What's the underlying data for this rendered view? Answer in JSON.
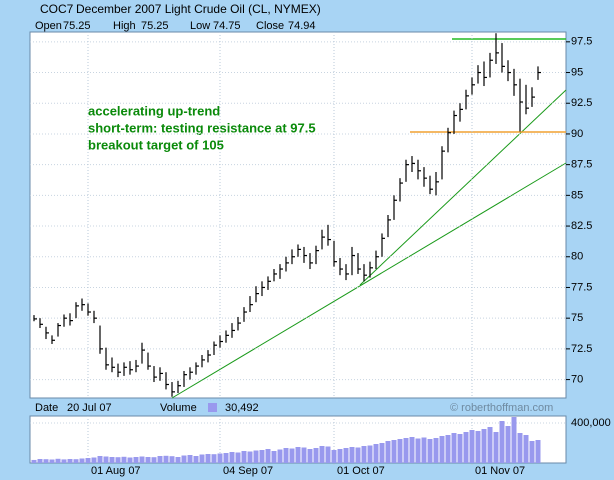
{
  "chart_data": [
    {
      "type": "ohlc",
      "symbol": "COC7",
      "title": "December 2007 Light Crude Oil (CL, NYMEX)",
      "info": [
        {
          "label": "Open",
          "value": 75.25
        },
        {
          "label": "High",
          "value": 75.25
        },
        {
          "label": "Low",
          "value": 74.75
        },
        {
          "label": "Close",
          "value": 74.94
        }
      ],
      "annotations": [
        "accelerating up-trend",
        "short-term: testing resistance at 97.5",
        "breakout target of 105"
      ],
      "watermark": "© roberthoffman.com",
      "color": "#000000",
      "ylim": [
        68.5,
        98.3
      ],
      "yticks": [
        70,
        72.5,
        75,
        77.5,
        80,
        82.5,
        85,
        87.5,
        90,
        92.5,
        95,
        97.5
      ],
      "grid": true,
      "high": [
        75.25,
        75.0,
        74.3,
        73.6,
        74.6,
        75.3,
        75.4,
        76.3,
        76.6,
        76.2,
        75.6,
        74.4,
        72.6,
        71.8,
        71.3,
        71.4,
        71.5,
        71.6,
        73.0,
        72.2,
        71.1,
        71.0,
        70.6,
        69.8,
        69.9,
        70.7,
        71.0,
        71.4,
        72.0,
        72.4,
        73.1,
        73.6,
        74.0,
        74.6,
        75.1,
        75.9,
        76.8,
        77.6,
        78.0,
        78.4,
        79.0,
        79.4,
        80.0,
        80.6,
        81.0,
        80.8,
        80.3,
        80.9,
        82.2,
        82.6,
        81.3,
        79.9,
        79.4,
        80.8,
        80.3,
        79.4,
        79.6,
        80.5,
        81.9,
        83.4,
        85.0,
        86.4,
        87.9,
        88.2,
        87.9,
        87.3,
        86.6,
        86.9,
        89.0,
        90.5,
        91.9,
        92.5,
        93.6,
        94.6,
        95.6,
        95.9,
        96.6,
        98.2,
        97.4,
        96.0,
        95.3,
        94.5,
        94.0,
        93.8,
        95.5
      ],
      "low": [
        74.75,
        74.2,
        73.3,
        72.9,
        73.5,
        74.3,
        74.4,
        75.0,
        75.6,
        75.2,
        74.6,
        72.1,
        70.8,
        70.6,
        70.2,
        70.3,
        70.4,
        70.6,
        71.3,
        70.8,
        69.8,
        69.9,
        69.2,
        68.6,
        68.9,
        69.4,
        70.0,
        70.4,
        71.0,
        71.4,
        72.0,
        72.6,
        73.0,
        73.4,
        74.0,
        74.7,
        75.5,
        76.3,
        76.8,
        77.3,
        78.0,
        78.2,
        78.8,
        79.4,
        80.0,
        79.5,
        79.0,
        79.4,
        80.6,
        80.9,
        79.2,
        78.5,
        78.1,
        78.5,
        78.6,
        78.0,
        78.3,
        79.0,
        80.0,
        81.6,
        83.0,
        84.5,
        86.1,
        86.9,
        86.3,
        85.7,
        85.1,
        85.0,
        86.3,
        88.5,
        90.0,
        91.0,
        92.0,
        93.2,
        94.1,
        93.9,
        94.6,
        95.7,
        95.0,
        94.3,
        93.1,
        90.2,
        91.6,
        92.2,
        94.4
      ],
      "close": [
        74.94,
        74.5,
        73.8,
        73.2,
        74.4,
        75.0,
        74.8,
        76.0,
        76.1,
        75.5,
        75.0,
        72.5,
        71.2,
        71.0,
        70.6,
        71.0,
        70.8,
        71.1,
        72.4,
        71.1,
        70.2,
        70.5,
        69.6,
        69.0,
        69.5,
        70.4,
        70.6,
        71.1,
        71.6,
        72.0,
        72.8,
        73.1,
        73.6,
        74.0,
        74.6,
        75.5,
        76.1,
        77.0,
        77.5,
        78.0,
        78.6,
        79.0,
        79.5,
        80.0,
        80.6,
        80.1,
        79.5,
        80.5,
        81.6,
        81.4,
        79.6,
        79.0,
        78.6,
        80.1,
        79.0,
        78.5,
        79.1,
        80.0,
        81.5,
        83.0,
        84.6,
        86.0,
        87.5,
        87.6,
        87.0,
        86.4,
        85.5,
        86.1,
        88.6,
        90.1,
        91.5,
        92.0,
        93.1,
        94.0,
        95.0,
        94.6,
        96.0,
        96.6,
        95.5,
        95.0,
        94.0,
        92.6,
        92.1,
        93.0,
        95.0
      ]
    },
    {
      "type": "bar",
      "status": [
        {
          "label": "Date",
          "value": "20 Jul 07"
        },
        {
          "label": "Volume",
          "value": "30,492"
        }
      ],
      "color": "#9999ee",
      "categories": [
        null,
        null,
        null,
        null,
        null,
        null,
        null,
        null,
        null,
        "01 Aug 07",
        null,
        null,
        null,
        null,
        null,
        null,
        null,
        null,
        null,
        null,
        null,
        null,
        null,
        null,
        null,
        null,
        null,
        null,
        null,
        null,
        null,
        "04 Sep 07",
        null,
        null,
        null,
        null,
        null,
        null,
        null,
        null,
        null,
        null,
        null,
        null,
        null,
        null,
        null,
        null,
        null,
        null,
        "01 Oct 07",
        null,
        null,
        null,
        null,
        null,
        null,
        null,
        null,
        null,
        null,
        null,
        null,
        null,
        null,
        null,
        null,
        null,
        null,
        null,
        null,
        null,
        null,
        "01 Nov 07",
        null,
        null,
        null,
        null,
        null,
        null,
        null,
        null,
        null,
        null,
        null
      ],
      "values": [
        30492,
        40000,
        38000,
        35000,
        42000,
        36000,
        40000,
        38000,
        45000,
        50000,
        55000,
        70000,
        65000,
        60000,
        58000,
        62000,
        55000,
        60000,
        65000,
        60000,
        58000,
        70000,
        72000,
        68000,
        60000,
        75000,
        80000,
        70000,
        85000,
        90000,
        88000,
        95000,
        100000,
        110000,
        105000,
        120000,
        115000,
        125000,
        130000,
        140000,
        120000,
        135000,
        150000,
        145000,
        160000,
        155000,
        140000,
        150000,
        170000,
        165000,
        130000,
        140000,
        150000,
        160000,
        155000,
        170000,
        175000,
        190000,
        200000,
        220000,
        230000,
        240000,
        250000,
        260000,
        245000,
        255000,
        240000,
        250000,
        270000,
        280000,
        300000,
        290000,
        310000,
        330000,
        320000,
        340000,
        360000,
        310000,
        420000,
        370000,
        460000,
        300000,
        280000,
        220000,
        230000
      ],
      "ylim": [
        0,
        470000
      ],
      "yticks": [
        {
          "value": 400000,
          "label": "400,000"
        }
      ]
    }
  ]
}
